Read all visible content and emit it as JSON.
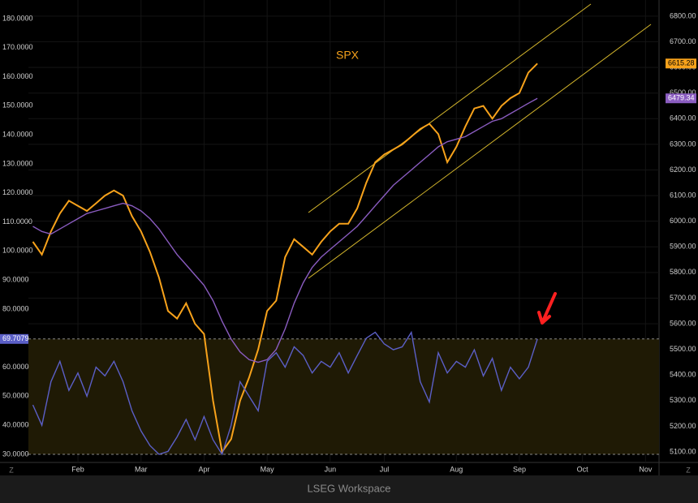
{
  "chart_data": {
    "type": "line",
    "title": "SPX",
    "footer": "LSEG Workspace",
    "corner_labels": [
      "Z",
      "Z"
    ],
    "categories": [
      null,
      null,
      null,
      null,
      null,
      "Feb",
      null,
      null,
      null,
      null,
      null,
      null,
      "Mar",
      null,
      null,
      null,
      null,
      null,
      null,
      "Apr",
      null,
      null,
      null,
      null,
      null,
      null,
      "May",
      null,
      null,
      null,
      null,
      null,
      null,
      "Jun",
      null,
      null,
      null,
      null,
      null,
      "Jul",
      null,
      null,
      null,
      null,
      null,
      null,
      null,
      "Aug",
      null,
      null,
      null,
      null,
      null,
      null,
      "Sep",
      null,
      null,
      null,
      null,
      null,
      null,
      "Oct",
      null,
      null,
      null,
      null,
      null,
      null,
      "Nov",
      null
    ],
    "series": [
      {
        "name": "SPX",
        "color": "#f7a21b",
        "values": [
          5920,
          5870,
          5960,
          6030,
          6080,
          6060,
          6040,
          6070,
          6100,
          6120,
          6100,
          6020,
          5960,
          5880,
          5780,
          5650,
          5620,
          5680,
          5600,
          5560,
          5300,
          5100,
          5150,
          5300,
          5390,
          5500,
          5650,
          5690,
          5860,
          5930,
          5900,
          5870,
          5920,
          5960,
          5990,
          5990,
          6050,
          6150,
          6230,
          6260,
          6280,
          6300,
          6330,
          6360,
          6380,
          6340,
          6230,
          6290,
          6370,
          6440,
          6450,
          6400,
          6450,
          6480,
          6500,
          6580,
          6615.28,
          null,
          null,
          null,
          null,
          null,
          null,
          null,
          null,
          null,
          null,
          null,
          null,
          null
        ]
      },
      {
        "color": "#8a5cc0",
        "values": [
          5980,
          5960,
          5950,
          5970,
          5990,
          6010,
          6030,
          6040,
          6050,
          6060,
          6070,
          6060,
          6040,
          6010,
          5970,
          5920,
          5870,
          5830,
          5790,
          5750,
          5690,
          5610,
          5540,
          5490,
          5460,
          5450,
          5460,
          5500,
          5580,
          5680,
          5760,
          5820,
          5860,
          5890,
          5920,
          5950,
          5980,
          6020,
          6060,
          6100,
          6140,
          6170,
          6200,
          6230,
          6260,
          6290,
          6310,
          6320,
          6330,
          6350,
          6370,
          6390,
          6400,
          6420,
          6440,
          6460,
          6479.34,
          null,
          null,
          null,
          null,
          null,
          null,
          null,
          null,
          null,
          null,
          null,
          null,
          null
        ]
      },
      {
        "color": "#5b5fc7",
        "axis": "y2",
        "values": [
          47,
          40,
          55,
          62,
          52,
          58,
          50,
          60,
          57,
          62,
          55,
          45,
          38,
          33,
          30,
          31,
          36,
          42,
          35,
          43,
          35,
          30,
          40,
          55,
          50,
          45,
          62,
          65,
          60,
          67,
          64,
          58,
          62,
          60,
          65,
          58,
          64,
          70,
          72,
          68,
          66,
          67,
          72,
          55,
          48,
          65,
          58,
          62,
          60,
          66,
          57,
          63,
          52,
          60,
          56,
          60,
          69.7079,
          null,
          null,
          null,
          null,
          null,
          null,
          null,
          null,
          null,
          null,
          null,
          null,
          null
        ]
      }
    ],
    "ylim": [
      5059,
      6863
    ],
    "yticks": [
      {
        "value": 5100,
        "label": "5100.00"
      },
      {
        "value": 5200,
        "label": "5200.00"
      },
      {
        "value": 5300,
        "label": "5300.00"
      },
      {
        "value": 5400,
        "label": "5400.00"
      },
      {
        "value": 5500,
        "label": "5500.00"
      },
      {
        "value": 5600,
        "label": "5600.00"
      },
      {
        "value": 5700,
        "label": "5700.00"
      },
      {
        "value": 5800,
        "label": "5800.00"
      },
      {
        "value": 5900,
        "label": "5900.00"
      },
      {
        "value": 6000,
        "label": "6000.00"
      },
      {
        "value": 6100,
        "label": "6100.00"
      },
      {
        "value": 6200,
        "label": "6200.00"
      },
      {
        "value": 6300,
        "label": "6300.00"
      },
      {
        "value": 6400,
        "label": "6400.00"
      },
      {
        "value": 6500,
        "label": "6500.00"
      },
      {
        "value": 6600,
        "label": "6600.00"
      },
      {
        "value": 6700,
        "label": "6700.00"
      },
      {
        "value": 6800,
        "label": "6800.00"
      }
    ],
    "y2lim": [
      27.2,
      186.4
    ],
    "y2ticks": [
      {
        "value": 30,
        "label": "30.0000"
      },
      {
        "value": 40,
        "label": "40.0000"
      },
      {
        "value": 50,
        "label": "50.0000"
      },
      {
        "value": 60,
        "label": "60.0000"
      },
      {
        "value": 70,
        "label": "70.0000"
      },
      {
        "value": 80,
        "label": "80.0000"
      },
      {
        "value": 90,
        "label": "90.0000"
      },
      {
        "value": 100,
        "label": "100.0000"
      },
      {
        "value": 110,
        "label": "110.0000"
      },
      {
        "value": 120,
        "label": "120.0000"
      },
      {
        "value": 130,
        "label": "130.0000"
      },
      {
        "value": 140,
        "label": "140.0000"
      },
      {
        "value": 150,
        "label": "150.0000"
      },
      {
        "value": 160,
        "label": "160.0000"
      },
      {
        "value": 170,
        "label": "170.0000"
      },
      {
        "value": 180,
        "label": "180.0000"
      }
    ],
    "grid": true
  }
}
